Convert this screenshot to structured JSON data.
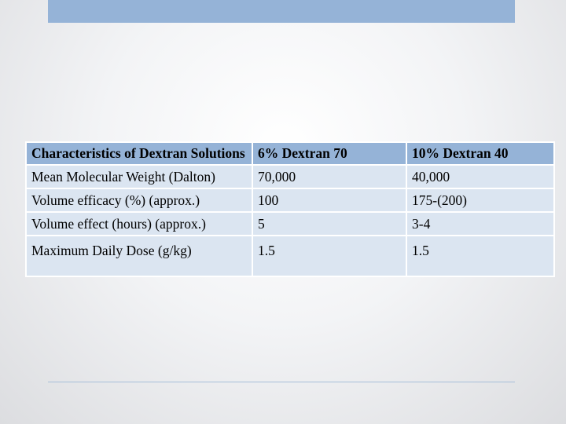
{
  "table": {
    "headers": [
      "Characteristics of Dextran Solutions",
      "6% Dextran 70",
      "10% Dextran 40"
    ],
    "rows": [
      [
        "Mean Molecular Weight (Dalton)",
        "70,000",
        "40,000"
      ],
      [
        "Volume efficacy (%) (approx.)",
        "100",
        "175-(200)"
      ],
      [
        "Volume effect (hours) (approx.)",
        "5",
        "3-4"
      ],
      [
        "Maximum Daily Dose (g/kg)",
        "1.5",
        "1.5"
      ]
    ]
  },
  "colors": {
    "accent": "#95b3d7",
    "row_fill": "#dbe5f1",
    "rule": "#a7bfd9"
  }
}
